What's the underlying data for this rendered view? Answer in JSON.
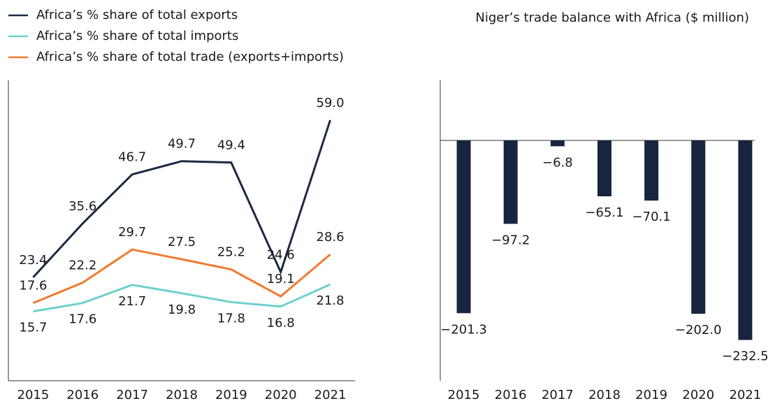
{
  "chart_data": [
    {
      "type": "line",
      "categories": [
        "2015",
        "2016",
        "2017",
        "2018",
        "2019",
        "2020",
        "2021"
      ],
      "series": [
        {
          "name": "Africa’s % share of total exports",
          "color": "#1b2a41",
          "values": [
            23.4,
            35.6,
            46.7,
            49.7,
            49.4,
            24.6,
            59.0
          ],
          "value_labels": [
            "23.4",
            "35.6",
            "46.7",
            "49.7",
            "49.4",
            "24.6",
            "59.0"
          ]
        },
        {
          "name": "Africa’s % share of total imports",
          "color": "#6fd0cc",
          "values": [
            15.7,
            17.6,
            21.7,
            19.8,
            17.8,
            16.8,
            21.8
          ],
          "value_labels": [
            "15.7",
            "17.6",
            "21.7",
            "19.8",
            "17.8",
            "16.8",
            "21.8"
          ]
        },
        {
          "name": "Africa’s % share of total trade (exports+imports)",
          "color": "#f07a30",
          "values": [
            17.6,
            22.2,
            29.7,
            27.5,
            25.2,
            19.1,
            28.6
          ],
          "value_labels": [
            "17.6",
            "22.2",
            "29.7",
            "27.5",
            "25.2",
            "19.1",
            "28.6"
          ]
        }
      ],
      "ylim": [
        0,
        68
      ],
      "legend": "top-left"
    },
    {
      "type": "bar",
      "title": "Niger’s trade balance with Africa ($ million)",
      "categories": [
        "2015",
        "2016",
        "2017",
        "2018",
        "2019",
        "2020",
        "2021"
      ],
      "values": [
        -201.3,
        -97.2,
        -6.8,
        -65.1,
        -70.1,
        -202.0,
        -232.5
      ],
      "value_labels": [
        "−201.3",
        "−97.2",
        "−6.8",
        "−65.1",
        "−70.1",
        "−202.0",
        "−232.5"
      ],
      "color": "#172540",
      "ylim": [
        -280,
        70
      ]
    }
  ]
}
